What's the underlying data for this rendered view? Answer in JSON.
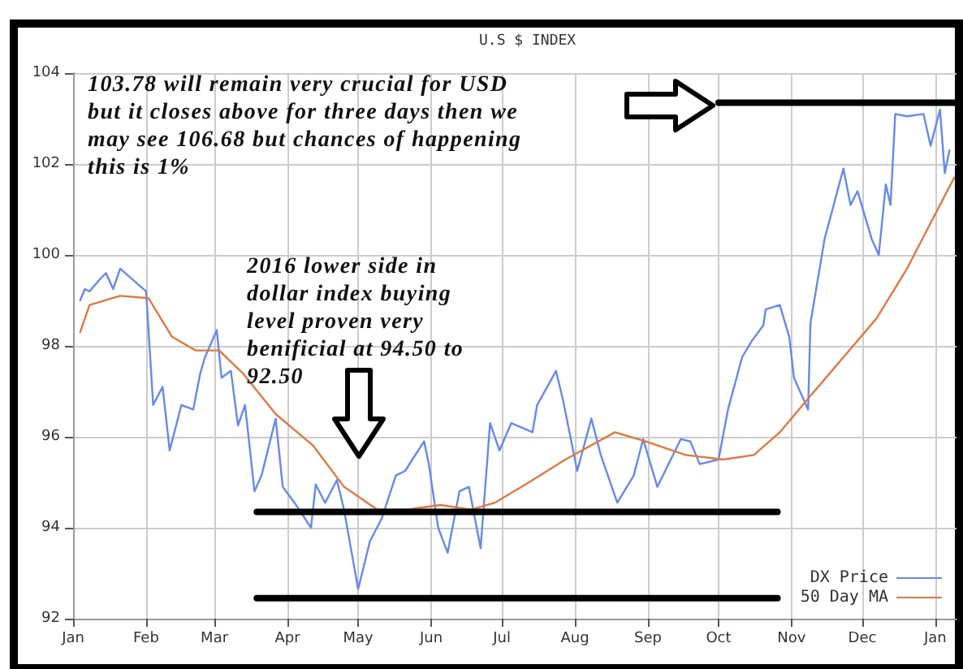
{
  "chart_data": {
    "type": "line",
    "title": "U.S $ INDEX",
    "annotations": [
      "103.78 will remain very crucial for USD but it closes above for three days then we may see 106.68 but chances of happening this is 1%",
      "2016 lower side in dollar index buying level proven very benificial at 94.50 to 92.50"
    ],
    "xlim": [
      "2016-01-01",
      "2017-01-10"
    ],
    "xticks": [
      {
        "value": "2016-01-01",
        "label": "Jan"
      },
      {
        "value": "2016-02-01",
        "label": "Feb"
      },
      {
        "value": "2016-03-01",
        "label": "Mar"
      },
      {
        "value": "2016-04-01",
        "label": "Apr"
      },
      {
        "value": "2016-05-01",
        "label": "May"
      },
      {
        "value": "2016-06-01",
        "label": "Jun"
      },
      {
        "value": "2016-07-01",
        "label": "Jul"
      },
      {
        "value": "2016-08-01",
        "label": "Aug"
      },
      {
        "value": "2016-09-01",
        "label": "Sep"
      },
      {
        "value": "2016-10-01",
        "label": "Oct"
      },
      {
        "value": "2016-11-01",
        "label": "Nov"
      },
      {
        "value": "2016-12-01",
        "label": "Dec"
      },
      {
        "value": "2017-01-01",
        "label": "Jan"
      }
    ],
    "ylim": [
      92,
      104
    ],
    "yticks": [
      92,
      94,
      96,
      98,
      100,
      102,
      104
    ],
    "grid": true,
    "legend": "bottom right",
    "marker": "none",
    "line_style": "solid",
    "series": [
      {
        "name": "DX Price",
        "color": "#6688ee",
        "x": [
          "2016-01-04",
          "2016-01-06",
          "2016-01-08",
          "2016-01-13",
          "2016-01-15",
          "2016-01-18",
          "2016-01-21",
          "2016-02-01",
          "2016-02-04",
          "2016-02-08",
          "2016-02-11",
          "2016-02-16",
          "2016-02-21",
          "2016-02-24",
          "2016-02-26",
          "2016-03-02",
          "2016-03-04",
          "2016-03-08",
          "2016-03-11",
          "2016-03-14",
          "2016-03-18",
          "2016-03-21",
          "2016-03-27",
          "2016-03-30",
          "2016-04-04",
          "2016-04-11",
          "2016-04-13",
          "2016-04-17",
          "2016-04-22",
          "2016-04-25",
          "2016-05-01",
          "2016-05-06",
          "2016-05-11",
          "2016-05-17",
          "2016-05-21",
          "2016-05-24",
          "2016-05-29",
          "2016-05-31",
          "2016-06-04",
          "2016-06-08",
          "2016-06-13",
          "2016-06-17",
          "2016-06-22",
          "2016-06-26",
          "2016-06-30",
          "2016-07-05",
          "2016-07-14",
          "2016-07-16",
          "2016-07-24",
          "2016-07-27",
          "2016-08-02",
          "2016-08-08",
          "2016-08-12",
          "2016-08-19",
          "2016-08-26",
          "2016-08-30",
          "2016-09-05",
          "2016-09-15",
          "2016-09-19",
          "2016-09-23",
          "2016-10-01",
          "2016-10-05",
          "2016-10-11",
          "2016-10-15",
          "2016-10-20",
          "2016-10-21",
          "2016-10-27",
          "2016-10-31",
          "2016-11-02",
          "2016-11-08",
          "2016-11-09",
          "2016-11-15",
          "2016-11-23",
          "2016-11-26",
          "2016-11-29",
          "2016-12-05",
          "2016-12-08",
          "2016-12-11",
          "2016-12-13",
          "2016-12-15",
          "2016-12-20",
          "2016-12-27",
          "2016-12-30",
          "2017-01-03",
          "2017-01-05",
          "2017-01-07"
        ],
        "values": [
          99.0,
          99.25,
          99.2,
          99.5,
          99.6,
          99.25,
          99.7,
          99.2,
          96.7,
          97.1,
          95.7,
          96.7,
          96.6,
          97.4,
          97.75,
          98.35,
          97.3,
          97.45,
          96.25,
          96.7,
          94.8,
          95.15,
          96.4,
          94.9,
          94.55,
          94.0,
          94.95,
          94.55,
          95.05,
          94.4,
          92.65,
          93.7,
          94.2,
          95.15,
          95.25,
          95.5,
          95.9,
          95.4,
          94.0,
          93.45,
          94.8,
          94.9,
          93.55,
          96.3,
          95.7,
          96.3,
          96.1,
          96.7,
          97.45,
          96.8,
          95.25,
          96.4,
          95.6,
          94.55,
          95.15,
          95.95,
          94.9,
          95.95,
          95.9,
          95.4,
          95.5,
          96.6,
          97.75,
          98.1,
          98.45,
          98.8,
          98.9,
          98.2,
          97.3,
          96.6,
          98.5,
          100.35,
          101.9,
          101.1,
          101.4,
          100.35,
          100.0,
          101.55,
          101.1,
          103.1,
          103.05,
          103.1,
          102.4,
          103.2,
          101.8,
          102.3
        ]
      },
      {
        "name": "50 Day MA",
        "color": "#e07840",
        "x": [
          "2016-01-04",
          "2016-01-08",
          "2016-01-21",
          "2016-02-02",
          "2016-02-12",
          "2016-02-22",
          "2016-03-03",
          "2016-03-13",
          "2016-03-27",
          "2016-04-12",
          "2016-04-25",
          "2016-05-09",
          "2016-05-22",
          "2016-06-05",
          "2016-06-18",
          "2016-06-28",
          "2016-07-11",
          "2016-07-28",
          "2016-08-18",
          "2016-08-31",
          "2016-09-17",
          "2016-10-03",
          "2016-10-16",
          "2016-10-27",
          "2016-11-09",
          "2016-11-23",
          "2016-12-07",
          "2016-12-20",
          "2017-01-02",
          "2017-01-09"
        ],
        "values": [
          98.3,
          98.9,
          99.1,
          99.05,
          98.2,
          97.9,
          97.9,
          97.4,
          96.5,
          95.8,
          94.9,
          94.4,
          94.4,
          94.5,
          94.4,
          94.55,
          94.95,
          95.5,
          96.1,
          95.9,
          95.6,
          95.5,
          95.6,
          96.1,
          96.9,
          97.75,
          98.6,
          99.7,
          101.0,
          101.7
        ]
      },
      {
        "color": "#000000",
        "x": [
          "2016-10-01",
          "2017-01-10"
        ],
        "values": [
          103.35,
          103.35
        ]
      },
      {
        "color": "#000000",
        "x": [
          "2016-03-19",
          "2016-10-26"
        ],
        "values": [
          94.35,
          94.35
        ]
      },
      {
        "color": "#000000",
        "x": [
          "2016-03-19",
          "2016-10-26"
        ],
        "values": [
          92.45,
          92.45
        ]
      }
    ]
  }
}
